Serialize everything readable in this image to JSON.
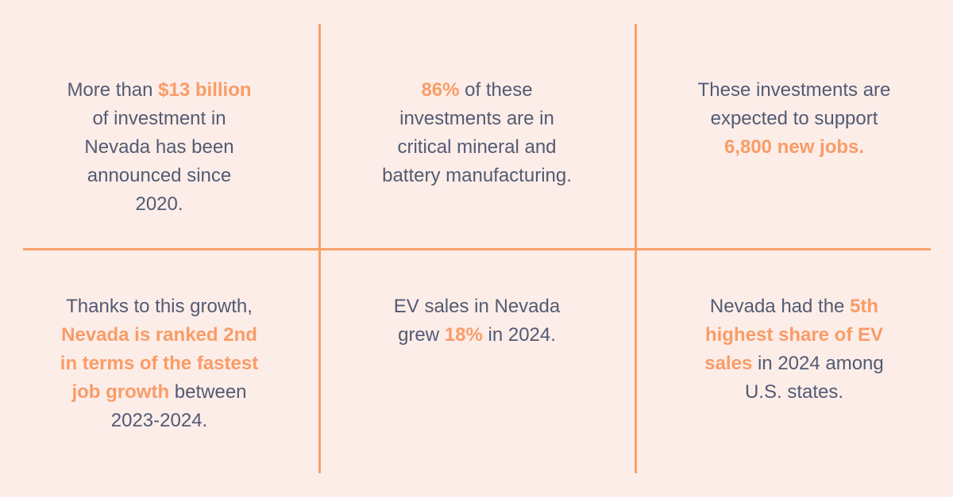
{
  "page": {
    "background_color": "#fdede8",
    "text_color": "#525b73",
    "accent_color": "#f99c67",
    "divider_color": "#f9a168"
  },
  "grid": {
    "cells": [
      {
        "id": "investment-total",
        "pre": "More than ",
        "highlight": "$13 billion",
        "post": "\nof investment in\nNevada has been\nannounced since\n2020."
      },
      {
        "id": "investment-share",
        "pre": "",
        "highlight": "86%",
        "post": " of these\ninvestments are in\ncritical mineral and\nbattery manufacturing."
      },
      {
        "id": "new-jobs",
        "pre": "These investments are\nexpected to support\n",
        "highlight": "6,800 new jobs.",
        "post": ""
      },
      {
        "id": "job-growth-rank",
        "pre": "Thanks to this growth,\n",
        "highlight": "Nevada is ranked 2nd\nin terms of the fastest\njob growth",
        "post": " between\n2023-2024."
      },
      {
        "id": "ev-sales-growth",
        "pre": "EV sales in Nevada\ngrew ",
        "highlight": "18%",
        "post": " in 2024."
      },
      {
        "id": "ev-sales-share-rank",
        "pre": "Nevada had the ",
        "highlight": "5th\nhighest share of EV\nsales",
        "post": " in 2024 among\nU.S. states."
      }
    ]
  }
}
